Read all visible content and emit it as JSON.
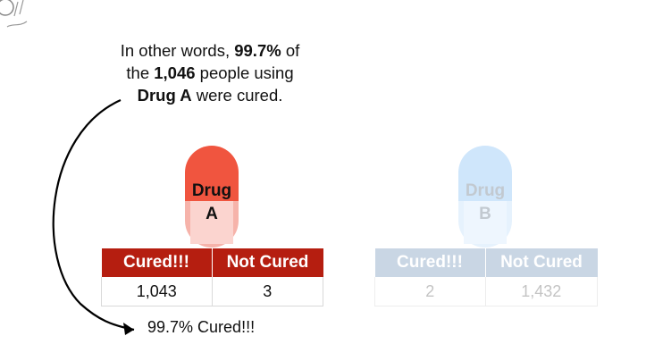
{
  "caption": {
    "pre": "In other words, ",
    "pct": "99.7%",
    "mid1": " of",
    "the": "the ",
    "count": "1,046",
    "mid2": " people using",
    "drug": "Drug A",
    "post": " were cured."
  },
  "drug_a": {
    "label_line1": "Drug",
    "label_line2": "A",
    "headers": [
      "Cured!!!",
      "Not Cured"
    ],
    "values": [
      "1,043",
      "3"
    ],
    "colors": {
      "pill_top": "#f0553f",
      "pill_bottom": "#f6b3aa",
      "header": "#b51e10"
    }
  },
  "drug_b": {
    "label_line1": "Drug",
    "label_line2": "B",
    "headers": [
      "Cured!!!",
      "Not Cured"
    ],
    "values": [
      "2",
      "1,432"
    ],
    "colors": {
      "pill_top": "#cfe6fb",
      "pill_bottom": "#e6f2fd",
      "header": "#c9d6e4"
    }
  },
  "summary": "99.7% Cured!!!",
  "icons": {
    "corner": "doodle-icon",
    "arrow": "curved-arrow-icon"
  }
}
